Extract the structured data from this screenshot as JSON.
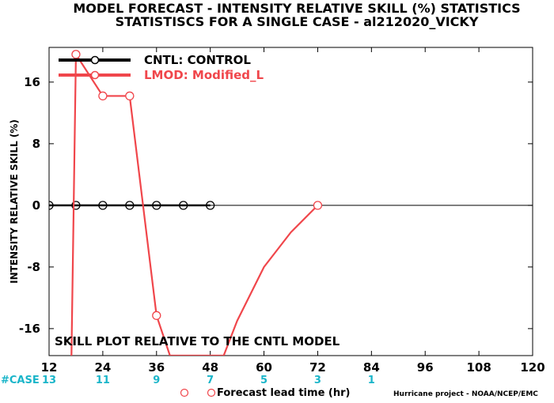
{
  "title_line1": "MODEL FORECAST - INTENSITY RELATIVE SKILL (%) STATISTICS",
  "title_line2": "STATISTISCS FOR A SINGLE CASE - al212020_VICKY",
  "annotation": "SKILL PLOT RELATIVE TO THE CNTL MODEL",
  "case_label": "#CASE",
  "xlabel": "Forecast lead time (hr)",
  "credit": "Hurricane project - NOAA/NCEP/EMC",
  "colors": {
    "cntl": "#000000",
    "lmod": "#f0464b",
    "cases": "#1ab5c9"
  },
  "chart_data": {
    "type": "line",
    "ylabel": "INTENSITY RELATIVE SKILL (%)",
    "xlim": [
      12,
      120
    ],
    "ylim": [
      -19.5,
      20.5
    ],
    "x_ticks": [
      12,
      24,
      36,
      48,
      60,
      72,
      84,
      96,
      108,
      120
    ],
    "y_ticks": [
      -16,
      -8,
      0,
      8,
      16
    ],
    "zero_line": true,
    "legend_position": "top-left",
    "cases": [
      {
        "x": 12,
        "label": "13"
      },
      {
        "x": 24,
        "label": "11"
      },
      {
        "x": 36,
        "label": "9"
      },
      {
        "x": 48,
        "label": "7"
      },
      {
        "x": 60,
        "label": "5"
      },
      {
        "x": 72,
        "label": "3"
      },
      {
        "x": 84,
        "label": "1"
      }
    ],
    "series": [
      {
        "name": "CNTL: CONTROL",
        "color": "#000000",
        "x": [
          12,
          18,
          24,
          30,
          36,
          42,
          48
        ],
        "y": [
          0,
          0,
          0,
          0,
          0,
          0,
          0
        ],
        "markers": [
          12,
          18,
          24,
          30,
          36,
          42,
          48
        ]
      },
      {
        "name": "LMOD: Modified_L",
        "color": "#f0464b",
        "x": [
          17,
          18,
          24,
          30,
          36,
          39,
          51,
          54,
          60,
          66,
          72
        ],
        "y": [
          -19.5,
          19.6,
          14.2,
          14.2,
          -14.3,
          -19.5,
          -19.5,
          -15,
          -8,
          -3.5,
          0
        ],
        "markers": [
          18,
          24,
          30,
          36,
          72
        ]
      }
    ]
  }
}
